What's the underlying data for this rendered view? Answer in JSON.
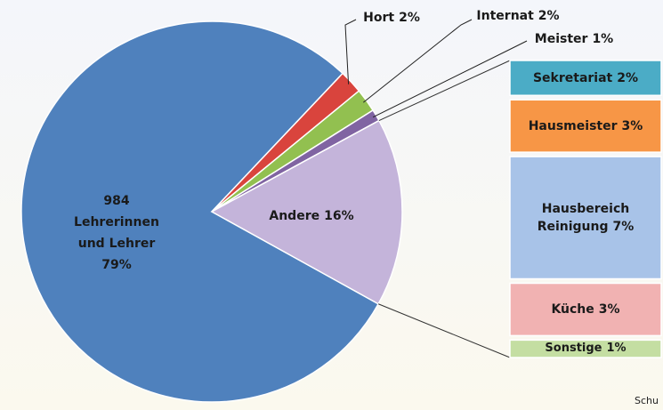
{
  "chart_data": {
    "type": "pie-of-bar",
    "categories": [
      "Lehrerinnen und Lehrer",
      "Hort",
      "Internat",
      "Meister",
      "Andere"
    ],
    "counts": [
      984,
      null,
      null,
      null,
      null
    ],
    "values": [
      79,
      2,
      2,
      1,
      16
    ],
    "value_labels": [
      "79%",
      "2%",
      "2%",
      "1%",
      "16%"
    ],
    "colors": [
      "#4f81bd",
      "#d9443d",
      "#92c050",
      "#8064a2",
      "#c4b4da"
    ],
    "bar": {
      "categories": [
        "Sekretariat",
        "Hausmeister",
        "Hausbereich Reinigung",
        "Küche",
        "Sonstige"
      ],
      "values": [
        2,
        3,
        7,
        3,
        1
      ],
      "value_labels": [
        "2%",
        "3%",
        "7%",
        "3%",
        "1%"
      ],
      "colors": [
        "#4bacc6",
        "#f79646",
        "#a8c3e8",
        "#f1b2b2",
        "#c4dea2"
      ]
    }
  },
  "footer": "Schu"
}
